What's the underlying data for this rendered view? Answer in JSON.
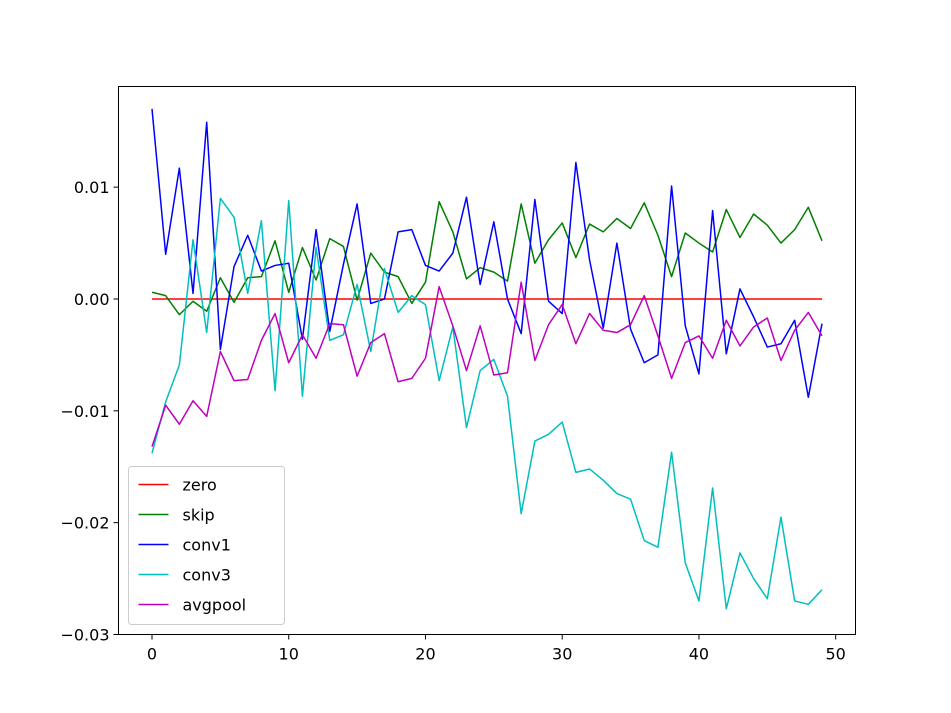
{
  "chart_data": {
    "type": "line",
    "title": "",
    "xlabel": "",
    "ylabel": "",
    "xlim": [
      -2.45,
      51.45
    ],
    "ylim": [
      -0.03,
      0.019
    ],
    "xticks": [
      0,
      10,
      20,
      30,
      40,
      50
    ],
    "xtick_labels": [
      "0",
      "10",
      "20",
      "30",
      "40",
      "50"
    ],
    "yticks": [
      -0.03,
      -0.02,
      -0.01,
      0.0,
      0.01
    ],
    "ytick_labels": [
      "−0.03",
      "−0.02",
      "−0.01",
      "0.00",
      "0.01"
    ],
    "grid": false,
    "legend": "lower-left",
    "x": [
      0,
      1,
      2,
      3,
      4,
      5,
      6,
      7,
      8,
      9,
      10,
      11,
      12,
      13,
      14,
      15,
      16,
      17,
      18,
      19,
      20,
      21,
      22,
      23,
      24,
      25,
      26,
      27,
      28,
      29,
      30,
      31,
      32,
      33,
      34,
      35,
      36,
      37,
      38,
      39,
      40,
      41,
      42,
      43,
      44,
      45,
      46,
      47,
      48,
      49
    ],
    "series": [
      {
        "name": "zero",
        "color": "#ff0000",
        "values": [
          0,
          0,
          0,
          0,
          0,
          0,
          0,
          0,
          0,
          0,
          0,
          0,
          0,
          0,
          0,
          0,
          0,
          0,
          0,
          0,
          0,
          0,
          0,
          0,
          0,
          0,
          0,
          0,
          0,
          0,
          0,
          0,
          0,
          0,
          0,
          0,
          0,
          0,
          0,
          0,
          0,
          0,
          0,
          0,
          0,
          0,
          0,
          0,
          0,
          0
        ]
      },
      {
        "name": "skip",
        "color": "#008000",
        "values": [
          0.0006,
          0.0003,
          -0.0014,
          -0.0002,
          -0.0011,
          0.0019,
          -0.0003,
          0.0019,
          0.002,
          0.0052,
          0.0006,
          0.0046,
          0.0017,
          0.0054,
          0.0047,
          -0.0001,
          0.0041,
          0.0024,
          0.002,
          -0.0004,
          0.0015,
          0.0087,
          0.006,
          0.0018,
          0.0028,
          0.0024,
          0.0016,
          0.0085,
          0.0032,
          0.0053,
          0.0068,
          0.0037,
          0.0067,
          0.006,
          0.0072,
          0.0063,
          0.0086,
          0.0057,
          0.002,
          0.0059,
          0.005,
          0.0042,
          0.008,
          0.0055,
          0.0076,
          0.0066,
          0.005,
          0.0062,
          0.0082,
          0.0052
        ]
      },
      {
        "name": "conv1",
        "color": "#0000ff",
        "values": [
          0.017,
          0.004,
          0.0117,
          0.0005,
          0.0158,
          -0.0045,
          0.0029,
          0.0057,
          0.0025,
          0.003,
          0.0032,
          -0.0036,
          0.0062,
          -0.0029,
          0.0031,
          0.0085,
          -0.0004,
          0.0,
          0.006,
          0.0062,
          0.003,
          0.0025,
          0.0041,
          0.0091,
          0.0013,
          0.0069,
          0.0,
          -0.0031,
          0.0089,
          -0.0002,
          -0.0013,
          0.0122,
          0.0035,
          -0.0026,
          0.005,
          -0.0027,
          -0.0057,
          -0.005,
          0.0101,
          -0.0024,
          -0.0067,
          0.0079,
          -0.0049,
          0.0009,
          -0.0016,
          -0.0043,
          -0.004,
          -0.0019,
          -0.0088,
          -0.0022
        ]
      },
      {
        "name": "conv3",
        "color": "#00bfbf",
        "values": [
          -0.0138,
          -0.0092,
          -0.0059,
          0.0053,
          -0.003,
          0.009,
          0.0073,
          0.0005,
          0.007,
          -0.0082,
          0.0088,
          -0.0087,
          0.0046,
          -0.0037,
          -0.0032,
          0.0013,
          -0.0047,
          0.0027,
          -0.0012,
          0.0003,
          -0.0005,
          -0.0073,
          -0.0025,
          -0.0115,
          -0.0064,
          -0.0054,
          -0.0087,
          -0.0192,
          -0.0127,
          -0.0121,
          -0.011,
          -0.0155,
          -0.0152,
          -0.0162,
          -0.0174,
          -0.0179,
          -0.0216,
          -0.0222,
          -0.0137,
          -0.0236,
          -0.027,
          -0.0169,
          -0.0277,
          -0.0227,
          -0.025,
          -0.0268,
          -0.0195,
          -0.027,
          -0.0273,
          -0.026
        ]
      },
      {
        "name": "avgpool",
        "color": "#bf00bf",
        "values": [
          -0.0132,
          -0.0095,
          -0.0112,
          -0.0091,
          -0.0105,
          -0.0047,
          -0.0073,
          -0.0072,
          -0.0037,
          -0.0013,
          -0.0057,
          -0.0032,
          -0.0053,
          -0.0022,
          -0.0023,
          -0.0069,
          -0.0039,
          -0.0031,
          -0.0074,
          -0.0071,
          -0.0053,
          0.0011,
          -0.0024,
          -0.0064,
          -0.0024,
          -0.0068,
          -0.0066,
          0.0015,
          -0.0055,
          -0.0023,
          -0.0005,
          -0.004,
          -0.0013,
          -0.0028,
          -0.003,
          -0.0023,
          0.0003,
          -0.0033,
          -0.0071,
          -0.0039,
          -0.0033,
          -0.0053,
          -0.0019,
          -0.0042,
          -0.0025,
          -0.0017,
          -0.0055,
          -0.0028,
          -0.0012,
          -0.0033
        ]
      }
    ]
  }
}
